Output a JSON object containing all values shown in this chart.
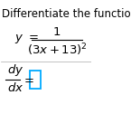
{
  "title": "Differentiate the function.",
  "box_color": "#00aaff",
  "text_color": "#000000",
  "background_color": "#ffffff",
  "title_fontsize": 8.5,
  "eq_fontsize": 9.5,
  "small_fontsize": 8.5,
  "fraction_line_color": "#000000",
  "separator_color": "#aaaaaa"
}
